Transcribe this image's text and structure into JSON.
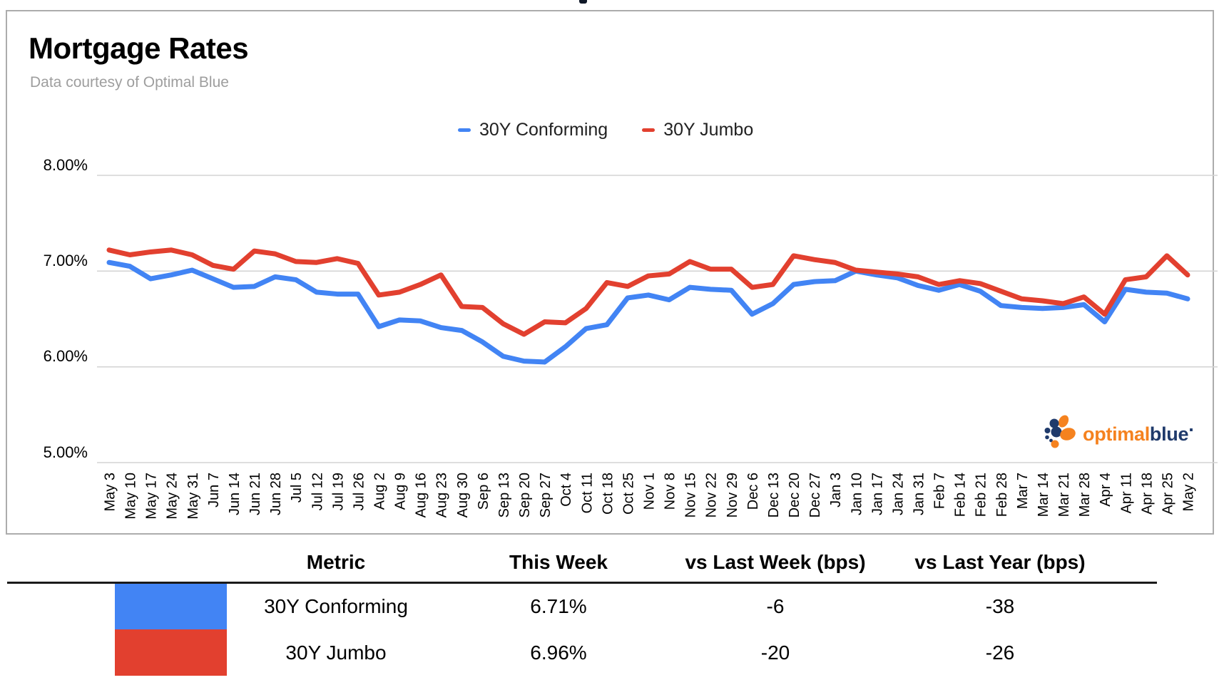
{
  "page": {
    "clipped_text_fragment": ""
  },
  "chart": {
    "title": "Mortgage Rates",
    "subtitle": "Data courtesy of Optimal Blue"
  },
  "chart_data": {
    "type": "line",
    "title": "Mortgage Rates",
    "xlabel": "",
    "ylabel": "",
    "ylim": [
      5,
      8
    ],
    "grid": true,
    "legend_position": "top-center",
    "ytick_labels": [
      "8.00%",
      "7.00%",
      "6.00%",
      "5.00%"
    ],
    "ytick_values": [
      8,
      7,
      6,
      5
    ],
    "x_labels": [
      "May 3",
      "May 10",
      "May 17",
      "May 24",
      "May 31",
      "Jun 7",
      "Jun 14",
      "Jun 21",
      "Jun 28",
      "Jul 5",
      "Jul 12",
      "Jul 19",
      "Jul 26",
      "Aug 2",
      "Aug 9",
      "Aug 16",
      "Aug 23",
      "Aug 30",
      "Sep 6",
      "Sep 13",
      "Sep 20",
      "Sep 27",
      "Oct 4",
      "Oct 11",
      "Oct 18",
      "Oct 25",
      "Nov 1",
      "Nov 8",
      "Nov 15",
      "Nov 22",
      "Nov 29",
      "Dec 6",
      "Dec 13",
      "Dec 20",
      "Dec 27",
      "Jan 3",
      "Jan 10",
      "Jan 17",
      "Jan 24",
      "Jan 31",
      "Feb 7",
      "Feb 14",
      "Feb 21",
      "Feb 28",
      "Mar 7",
      "Mar 14",
      "Mar 21",
      "Mar 28",
      "Apr 4",
      "Apr 11",
      "Apr 18",
      "Apr 25",
      "May 2"
    ],
    "series": [
      {
        "name": "30Y Conforming",
        "color": "#4284F4",
        "values": [
          7.09,
          7.05,
          6.92,
          6.96,
          7.01,
          6.92,
          6.83,
          6.84,
          6.94,
          6.91,
          6.78,
          6.76,
          6.76,
          6.42,
          6.49,
          6.48,
          6.41,
          6.38,
          6.26,
          6.11,
          6.06,
          6.05,
          6.21,
          6.4,
          6.44,
          6.72,
          6.75,
          6.7,
          6.83,
          6.81,
          6.8,
          6.55,
          6.66,
          6.86,
          6.89,
          6.9,
          7.0,
          6.96,
          6.93,
          6.85,
          6.8,
          6.86,
          6.79,
          6.64,
          6.62,
          6.61,
          6.62,
          6.65,
          6.47,
          6.81,
          6.78,
          6.77,
          6.71
        ]
      },
      {
        "name": "30Y Jumbo",
        "color": "#E2402F",
        "values": [
          7.22,
          7.17,
          7.2,
          7.22,
          7.17,
          7.06,
          7.02,
          7.21,
          7.18,
          7.1,
          7.09,
          7.13,
          7.08,
          6.75,
          6.78,
          6.86,
          6.96,
          6.63,
          6.62,
          6.45,
          6.34,
          6.47,
          6.46,
          6.61,
          6.88,
          6.84,
          6.95,
          6.97,
          7.1,
          7.02,
          7.02,
          6.83,
          6.86,
          7.16,
          7.12,
          7.09,
          7.01,
          6.99,
          6.97,
          6.94,
          6.86,
          6.9,
          6.87,
          6.79,
          6.71,
          6.69,
          6.66,
          6.73,
          6.55,
          6.91,
          6.94,
          7.16,
          6.96
        ]
      }
    ]
  },
  "logo": {
    "text_orange": "optimal",
    "text_navy": "blue",
    "trademark_dot": "·",
    "orange_hex": "#F5821F",
    "navy_hex": "#1F3A6B"
  },
  "table": {
    "headers": [
      "Metric",
      "This Week",
      "vs Last Week (bps)",
      "vs Last Year (bps)"
    ],
    "rows": [
      {
        "swatch_color": "#4284F4",
        "metric": "30Y Conforming",
        "this_week": "6.71%",
        "vs_last_week": "-6",
        "vs_last_year": "-38"
      },
      {
        "swatch_color": "#E2402F",
        "metric": "30Y Jumbo",
        "this_week": "6.96%",
        "vs_last_week": "-20",
        "vs_last_year": "-26"
      }
    ]
  }
}
